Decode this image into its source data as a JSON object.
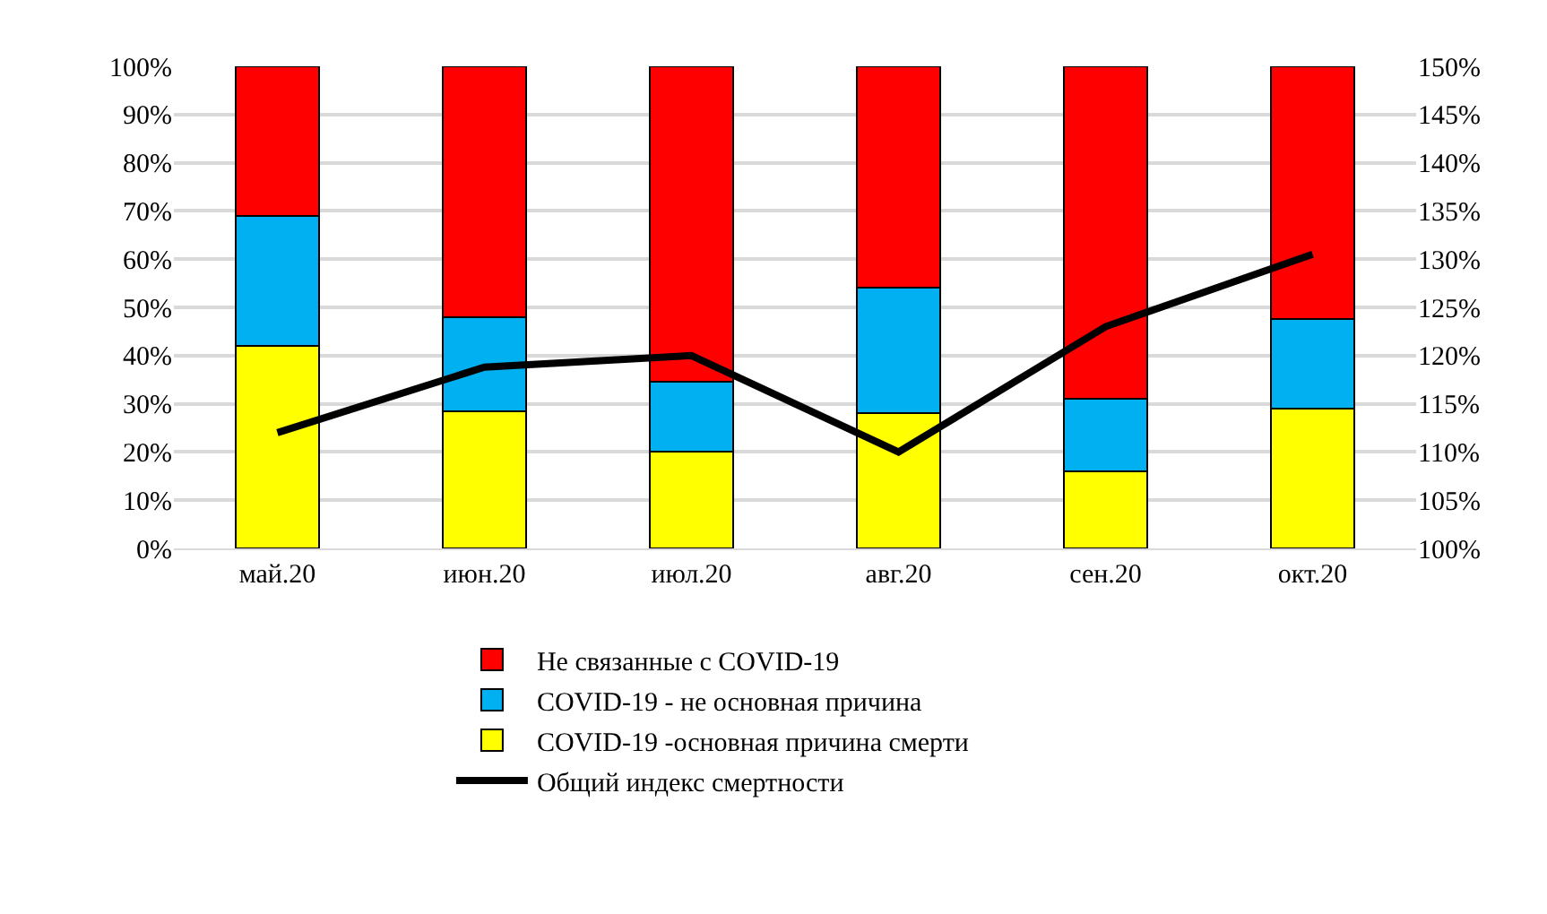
{
  "chart_data": {
    "type": "bar",
    "stacked": true,
    "categories": [
      "май.20",
      "июн.20",
      "июл.20",
      "авг.20",
      "сен.20",
      "окт.20"
    ],
    "series": [
      {
        "name": "COVID-19 -основная причина смерти",
        "color": "#ffff00",
        "values": [
          42,
          28.5,
          20,
          28,
          16,
          29
        ]
      },
      {
        "name": "COVID-19 - не основная причина",
        "color": "#00b0f0",
        "values": [
          27,
          19.5,
          14.5,
          26,
          15,
          18.5
        ]
      },
      {
        "name": "Не связанные с COVID-19",
        "color": "#ff0000",
        "values": [
          31,
          52,
          65.5,
          46,
          69,
          52.5
        ]
      },
      {
        "name": "Общий индекс смертности",
        "type": "line",
        "axis": "y2",
        "color": "#000000",
        "marker": "none",
        "line_style": "solid",
        "values": [
          112,
          118.8,
          120,
          110,
          123,
          130.5
        ]
      }
    ],
    "ylim": [
      0,
      100
    ],
    "yticks": [
      {
        "value": 0,
        "label": "0%"
      },
      {
        "value": 10,
        "label": "10%"
      },
      {
        "value": 20,
        "label": "20%"
      },
      {
        "value": 30,
        "label": "30%"
      },
      {
        "value": 40,
        "label": "40%"
      },
      {
        "value": 50,
        "label": "50%"
      },
      {
        "value": 60,
        "label": "60%"
      },
      {
        "value": 70,
        "label": "70%"
      },
      {
        "value": 80,
        "label": "80%"
      },
      {
        "value": 90,
        "label": "90%"
      },
      {
        "value": 100,
        "label": "100%"
      }
    ],
    "y2lim": [
      100,
      150
    ],
    "y2ticks": [
      {
        "value": 100,
        "label": "100%"
      },
      {
        "value": 105,
        "label": "105%"
      },
      {
        "value": 110,
        "label": "110%"
      },
      {
        "value": 115,
        "label": "115%"
      },
      {
        "value": 120,
        "label": "120%"
      },
      {
        "value": 125,
        "label": "125%"
      },
      {
        "value": 130,
        "label": "130%"
      },
      {
        "value": 135,
        "label": "135%"
      },
      {
        "value": 140,
        "label": "140%"
      },
      {
        "value": 145,
        "label": "145%"
      },
      {
        "value": 150,
        "label": "150%"
      }
    ],
    "grid": "y",
    "legend": "bottom"
  }
}
